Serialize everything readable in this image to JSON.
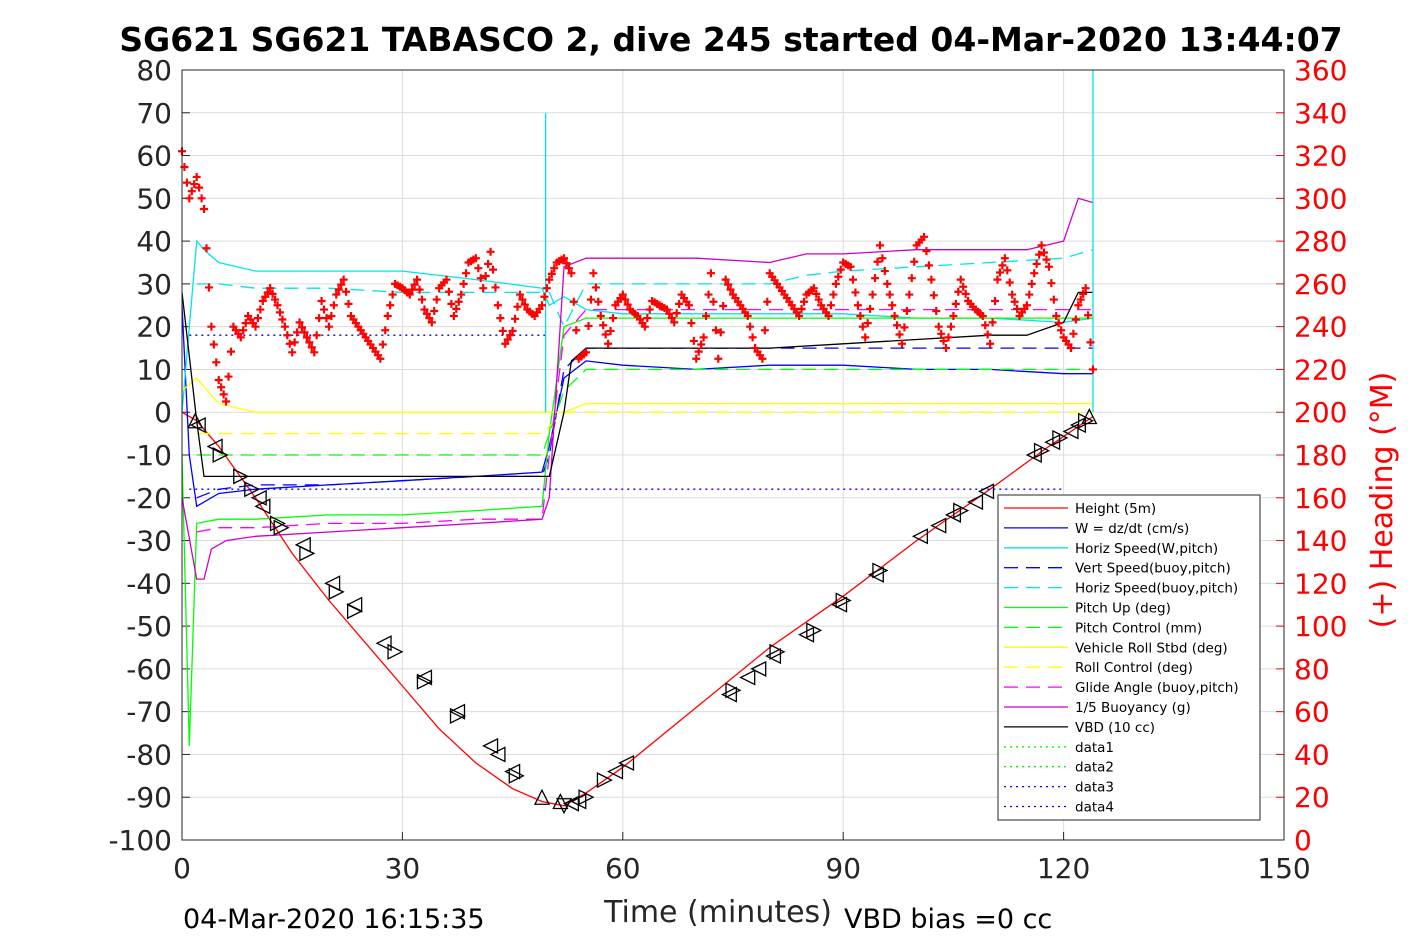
{
  "chart_data": {
    "type": "line",
    "title": "SG621 SG621 TABASCO 2, dive 245 started 04-Mar-2020 13:44:07",
    "xlabel": "Time (minutes)",
    "ylabel_right": "(+) Heading (°M)",
    "footer_left": "04-Mar-2020 16:15:35",
    "footer_right": "VBD bias =0 cc",
    "xlim": [
      0,
      150
    ],
    "ylim": [
      -100,
      80
    ],
    "ylim_right": [
      0,
      360
    ],
    "xticks": [
      "0",
      "30",
      "60",
      "90",
      "120",
      "150"
    ],
    "yticks": [
      "80",
      "70",
      "60",
      "50",
      "40",
      "30",
      "20",
      "10",
      "0",
      "-10",
      "-20",
      "-30",
      "-40",
      "-50",
      "-60",
      "-70",
      "-80",
      "-90",
      "-100"
    ],
    "yticks_right": [
      "360",
      "340",
      "320",
      "300",
      "280",
      "260",
      "240",
      "220",
      "200",
      "180",
      "160",
      "140",
      "120",
      "100",
      "80",
      "60",
      "40",
      "20",
      "0"
    ],
    "grid": true,
    "legend_position": "bottom-right",
    "series": [
      {
        "name": "Height (5m)",
        "color": "#ff0000",
        "style": "solid",
        "x": [
          0,
          2,
          5,
          10,
          15,
          20,
          25,
          30,
          35,
          40,
          45,
          49,
          52,
          55,
          60,
          70,
          80,
          90,
          100,
          110,
          118,
          124
        ],
        "y": [
          0,
          -2,
          -8,
          -20,
          -33,
          -44,
          -54,
          -64,
          -74,
          -82,
          -88,
          -91,
          -92,
          -89,
          -83,
          -69,
          -55,
          -43,
          -30,
          -18,
          -8,
          -1
        ]
      },
      {
        "name": "W = dz/dt (cm/s)",
        "color": "#0000ff",
        "style": "solid",
        "x": [
          0,
          1,
          2,
          5,
          10,
          20,
          30,
          40,
          49,
          50,
          52,
          55,
          60,
          70,
          80,
          90,
          100,
          110,
          120,
          124
        ],
        "y": [
          25,
          -10,
          -22,
          -19,
          -18,
          -17,
          -16,
          -15,
          -14,
          -8,
          8,
          12,
          11,
          10,
          11,
          11,
          10,
          10,
          9,
          9
        ]
      },
      {
        "name": "Horiz Speed(W,pitch)",
        "color": "#00e5e5",
        "style": "solid",
        "x": [
          0,
          2,
          3,
          5,
          10,
          20,
          30,
          40,
          49,
          50,
          52,
          55,
          60,
          70,
          80,
          90,
          100,
          110,
          120,
          124
        ],
        "y": [
          0,
          40,
          38,
          35,
          33,
          33,
          33,
          31,
          29,
          25,
          27,
          24,
          23,
          23,
          23,
          23,
          22,
          22,
          21,
          22
        ]
      },
      {
        "name": "Vert Speed(buoy,pitch)",
        "color": "#0000ff",
        "style": "dashed",
        "x": [
          2,
          5,
          10,
          20,
          30,
          40,
          49,
          50,
          52,
          55,
          60,
          70,
          80,
          90,
          100,
          110,
          120,
          124
        ],
        "y": [
          -20,
          -18,
          -17,
          -17,
          -16,
          -15,
          -15,
          -10,
          10,
          15,
          15,
          15,
          15,
          15,
          15,
          15,
          15,
          15
        ]
      },
      {
        "name": "Horiz Speed(buoy,pitch)",
        "color": "#00e5e5",
        "style": "dashed",
        "x": [
          2,
          5,
          10,
          20,
          30,
          40,
          49,
          50,
          52,
          55,
          60,
          70,
          80,
          85,
          90,
          100,
          110,
          120,
          124
        ],
        "y": [
          30,
          30,
          29,
          29,
          28,
          28,
          28,
          28,
          20,
          30,
          30,
          30,
          30,
          32,
          33,
          34,
          35,
          36,
          38
        ]
      },
      {
        "name": "Pitch Up (deg)",
        "color": "#00ff00",
        "style": "solid",
        "x": [
          0,
          1,
          2,
          5,
          10,
          20,
          30,
          40,
          49,
          50,
          52,
          55,
          60,
          70,
          80,
          90,
          100,
          110,
          120,
          124
        ],
        "y": [
          -10,
          -78,
          -26,
          -25,
          -25,
          -24,
          -24,
          -23,
          -22,
          -5,
          20,
          22,
          22,
          22,
          22,
          22,
          22,
          22,
          22,
          22
        ]
      },
      {
        "name": "Pitch Control (mm)",
        "color": "#00ff00",
        "style": "dashed",
        "x": [
          2,
          10,
          20,
          30,
          40,
          49,
          50,
          52,
          55,
          60,
          70,
          80,
          90,
          100,
          110,
          120,
          124
        ],
        "y": [
          -10,
          -10,
          -10,
          -10,
          -10,
          -10,
          -5,
          5,
          10,
          10,
          10,
          10,
          10,
          10,
          10,
          10,
          10
        ]
      },
      {
        "name": "Vehicle Roll Stbd (deg)",
        "color": "#ffff00",
        "style": "solid",
        "x": [
          0,
          2,
          5,
          10,
          20,
          30,
          40,
          49,
          52,
          55,
          60,
          70,
          80,
          90,
          100,
          110,
          120,
          124
        ],
        "y": [
          5,
          8,
          2,
          0,
          0,
          0,
          0,
          0,
          0,
          2,
          2,
          2,
          2,
          2,
          2,
          2,
          2,
          2
        ]
      },
      {
        "name": "Roll Control (deg)",
        "color": "#ffff00",
        "style": "dashed",
        "x": [
          2,
          10,
          20,
          30,
          40,
          49,
          52,
          60,
          70,
          80,
          90,
          100,
          110,
          120,
          124
        ],
        "y": [
          -5,
          -5,
          -5,
          -5,
          -5,
          -5,
          0,
          0,
          0,
          0,
          0,
          0,
          0,
          0,
          0
        ]
      },
      {
        "name": "Glide Angle (buoy,pitch)",
        "color": "#ff00ff",
        "style": "dashed",
        "x": [
          2,
          5,
          10,
          20,
          30,
          40,
          49,
          50,
          52,
          55,
          60,
          70,
          80,
          90,
          100,
          110,
          120,
          124
        ],
        "y": [
          -28,
          -27,
          -27,
          -26,
          -26,
          -25,
          -25,
          -10,
          18,
          24,
          24,
          24,
          24,
          24,
          24,
          24,
          24,
          24
        ]
      },
      {
        "name": "1/5 Buoyancy (g)",
        "color": "#cc00cc",
        "style": "solid",
        "x": [
          0,
          2,
          3,
          4,
          6,
          10,
          20,
          30,
          40,
          49,
          50,
          52,
          55,
          60,
          70,
          80,
          85,
          90,
          100,
          110,
          115,
          120,
          122,
          124
        ],
        "y": [
          -20,
          -39,
          -39,
          -32,
          -30,
          -29,
          -28,
          -27,
          -26,
          -25,
          -20,
          34,
          36,
          36,
          36,
          35,
          37,
          37,
          38,
          38,
          38,
          40,
          50,
          49
        ]
      },
      {
        "name": "VBD (10 cc)",
        "color": "#000000",
        "style": "solid",
        "x": [
          0,
          2,
          3,
          10,
          20,
          30,
          40,
          49,
          50,
          52,
          53,
          55,
          60,
          70,
          80,
          90,
          100,
          110,
          115,
          120,
          122,
          124
        ],
        "y": [
          28,
          -2,
          -15,
          -15,
          -15,
          -15,
          -15,
          -15,
          -15,
          0,
          12,
          15,
          15,
          15,
          15,
          16,
          17,
          18,
          18,
          21,
          28,
          28
        ]
      },
      {
        "name": "data1",
        "color": "#00ff00",
        "style": "dotted",
        "x": [],
        "y": []
      },
      {
        "name": "data2",
        "color": "#00ff00",
        "style": "dotted",
        "x": [],
        "y": []
      },
      {
        "name": "data3",
        "color": "#0000ff",
        "style": "dotted",
        "x": [
          1,
          50
        ],
        "y": [
          18,
          18
        ]
      },
      {
        "name": "data4",
        "color": "#0000ff",
        "style": "dotted",
        "x": [
          1,
          120
        ],
        "y": [
          -18,
          -18
        ]
      }
    ],
    "heading_series": {
      "color": "#ff0000",
      "marker": "+",
      "axis": "right",
      "x": [
        0,
        1,
        2,
        3,
        4,
        5,
        6,
        7,
        8,
        9,
        10,
        11,
        12,
        13,
        14,
        15,
        16,
        17,
        18,
        19,
        20,
        21,
        22,
        23,
        24,
        25,
        26,
        27,
        28,
        29,
        30,
        31,
        32,
        33,
        34,
        35,
        36,
        37,
        38,
        39,
        40,
        41,
        42,
        43,
        44,
        45,
        46,
        47,
        48,
        49,
        50,
        51,
        52,
        53,
        54,
        55,
        56,
        57,
        58,
        59,
        60,
        61,
        62,
        63,
        64,
        65,
        66,
        67,
        68,
        69,
        70,
        71,
        72,
        73,
        74,
        75,
        76,
        77,
        78,
        79,
        80,
        81,
        82,
        83,
        84,
        85,
        86,
        87,
        88,
        89,
        90,
        91,
        92,
        93,
        94,
        95,
        96,
        97,
        98,
        99,
        100,
        101,
        102,
        103,
        104,
        105,
        106,
        107,
        108,
        109,
        110,
        111,
        112,
        113,
        114,
        115,
        116,
        117,
        118,
        119,
        120,
        121,
        122,
        123,
        124
      ],
      "y": [
        322,
        300,
        310,
        295,
        240,
        215,
        205,
        240,
        235,
        245,
        240,
        252,
        258,
        250,
        240,
        228,
        242,
        235,
        228,
        252,
        240,
        255,
        262,
        245,
        240,
        235,
        230,
        225,
        245,
        260,
        258,
        255,
        262,
        248,
        242,
        258,
        262,
        245,
        255,
        270,
        272,
        258,
        275,
        250,
        232,
        238,
        255,
        248,
        245,
        250,
        262,
        270,
        272,
        265,
        225,
        228,
        265,
        245,
        232,
        250,
        255,
        248,
        245,
        240,
        252,
        250,
        248,
        242,
        255,
        250,
        225,
        235,
        265,
        225,
        262,
        255,
        250,
        245,
        230,
        225,
        265,
        260,
        255,
        250,
        245,
        255,
        258,
        250,
        245,
        260,
        270,
        268,
        250,
        235,
        255,
        278,
        260,
        245,
        232,
        255,
        278,
        282,
        262,
        240,
        230,
        245,
        262,
        252,
        248,
        245,
        232,
        262,
        272,
        255,
        245,
        250,
        265,
        278,
        268,
        245,
        235,
        230,
        250,
        258,
        220
      ]
    },
    "triangle_markers": {
      "color": "#000000",
      "points": [
        {
          "x": 1.8,
          "y": -2,
          "dir": "up"
        },
        {
          "x": 2.2,
          "y": -3,
          "dir": "left"
        },
        {
          "x": 4.5,
          "y": -8,
          "dir": "left"
        },
        {
          "x": 5.2,
          "y": -10,
          "dir": "right"
        },
        {
          "x": 8,
          "y": -15,
          "dir": "right"
        },
        {
          "x": 9.5,
          "y": -18,
          "dir": "right"
        },
        {
          "x": 10.5,
          "y": -20,
          "dir": "left"
        },
        {
          "x": 11,
          "y": -22,
          "dir": "left"
        },
        {
          "x": 13,
          "y": -26,
          "dir": "right"
        },
        {
          "x": 13.5,
          "y": -27,
          "dir": "right"
        },
        {
          "x": 16.5,
          "y": -31,
          "dir": "left"
        },
        {
          "x": 17,
          "y": -33,
          "dir": "right"
        },
        {
          "x": 20.5,
          "y": -40,
          "dir": "left"
        },
        {
          "x": 21,
          "y": -42,
          "dir": "right"
        },
        {
          "x": 23.5,
          "y": -45,
          "dir": "left"
        },
        {
          "x": 23.5,
          "y": -46.5,
          "dir": "right"
        },
        {
          "x": 27.5,
          "y": -54,
          "dir": "left"
        },
        {
          "x": 29,
          "y": -56,
          "dir": "right"
        },
        {
          "x": 33,
          "y": -62,
          "dir": "left"
        },
        {
          "x": 33,
          "y": -63,
          "dir": "right"
        },
        {
          "x": 37.5,
          "y": -70,
          "dir": "left"
        },
        {
          "x": 37.5,
          "y": -71,
          "dir": "right"
        },
        {
          "x": 42,
          "y": -78,
          "dir": "left"
        },
        {
          "x": 43,
          "y": -80,
          "dir": "left"
        },
        {
          "x": 45,
          "y": -84,
          "dir": "left"
        },
        {
          "x": 45.5,
          "y": -85,
          "dir": "right"
        },
        {
          "x": 49,
          "y": -90,
          "dir": "up"
        },
        {
          "x": 51.5,
          "y": -91,
          "dir": "up"
        },
        {
          "x": 52,
          "y": -92,
          "dir": "down"
        },
        {
          "x": 53,
          "y": -91.5,
          "dir": "left"
        },
        {
          "x": 54,
          "y": -91,
          "dir": "left"
        },
        {
          "x": 55,
          "y": -90,
          "dir": "right"
        },
        {
          "x": 57.5,
          "y": -86,
          "dir": "right"
        },
        {
          "x": 59,
          "y": -84,
          "dir": "left"
        },
        {
          "x": 60.5,
          "y": -82,
          "dir": "left"
        },
        {
          "x": 74.5,
          "y": -66,
          "dir": "left"
        },
        {
          "x": 75,
          "y": -65,
          "dir": "right"
        },
        {
          "x": 77,
          "y": -62,
          "dir": "left"
        },
        {
          "x": 78.5,
          "y": -60,
          "dir": "left"
        },
        {
          "x": 80.5,
          "y": -57,
          "dir": "left"
        },
        {
          "x": 81,
          "y": -56,
          "dir": "right"
        },
        {
          "x": 85,
          "y": -52,
          "dir": "left"
        },
        {
          "x": 86,
          "y": -51,
          "dir": "right"
        },
        {
          "x": 89.5,
          "y": -45,
          "dir": "left"
        },
        {
          "x": 90,
          "y": -44,
          "dir": "right"
        },
        {
          "x": 94.5,
          "y": -38,
          "dir": "left"
        },
        {
          "x": 95,
          "y": -37,
          "dir": "right"
        },
        {
          "x": 100.5,
          "y": -29,
          "dir": "left"
        },
        {
          "x": 103,
          "y": -26.5,
          "dir": "left"
        },
        {
          "x": 105,
          "y": -24,
          "dir": "left"
        },
        {
          "x": 106,
          "y": -23,
          "dir": "right"
        },
        {
          "x": 108,
          "y": -21,
          "dir": "left"
        },
        {
          "x": 109.5,
          "y": -18.5,
          "dir": "left"
        },
        {
          "x": 116,
          "y": -10,
          "dir": "left"
        },
        {
          "x": 117,
          "y": -9,
          "dir": "right"
        },
        {
          "x": 118.5,
          "y": -7,
          "dir": "left"
        },
        {
          "x": 119.5,
          "y": -6,
          "dir": "right"
        },
        {
          "x": 121,
          "y": -4.5,
          "dir": "left"
        },
        {
          "x": 122,
          "y": -3,
          "dir": "left"
        },
        {
          "x": 123,
          "y": -2,
          "dir": "right"
        },
        {
          "x": 123.5,
          "y": -1,
          "dir": "up"
        }
      ]
    },
    "spikes": [
      {
        "name": "Horiz Speed(W,pitch)",
        "color": "#00e5e5",
        "x": 49.5,
        "y": 70
      },
      {
        "name": "Horiz Speed(W,pitch)",
        "color": "#00e5e5",
        "x": 124,
        "y": 80
      }
    ]
  }
}
